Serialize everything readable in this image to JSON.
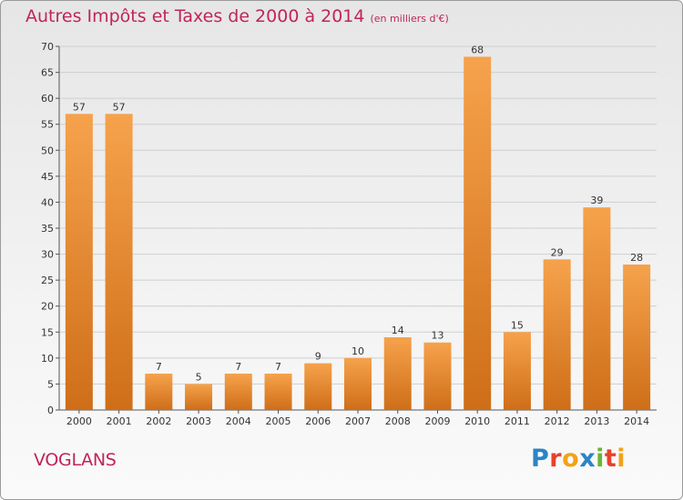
{
  "header": {
    "title": "Autres Impôts et Taxes de 2000 à 2014",
    "subtitle": "(en milliers d'€)"
  },
  "footer": {
    "city": "VOGLANS",
    "logo_letters": [
      "P",
      "r",
      "o",
      "x",
      "i",
      "t",
      "i"
    ],
    "logo_colors": [
      "#2b84c6",
      "#e8412c",
      "#f2a21a",
      "#2b84c6",
      "#6bb536",
      "#e8412c",
      "#f2a21a"
    ]
  },
  "colors": {
    "bar_light": "#f6a24c",
    "bar_dark": "#cf6e18",
    "title": "#c0245c",
    "grid": "#cfcfcf"
  },
  "chart_data": {
    "type": "bar",
    "title": "Autres Impôts et Taxes de 2000 à 2014",
    "subtitle": "(en milliers d'€)",
    "categories": [
      "2000",
      "2001",
      "2002",
      "2003",
      "2004",
      "2005",
      "2006",
      "2007",
      "2008",
      "2009",
      "2010",
      "2011",
      "2012",
      "2013",
      "2014"
    ],
    "values": [
      57,
      57,
      7,
      5,
      7,
      7,
      9,
      10,
      14,
      13,
      68,
      15,
      29,
      39,
      28
    ],
    "ylim": [
      0,
      70
    ],
    "yticks": [
      0,
      5,
      10,
      15,
      20,
      25,
      30,
      35,
      40,
      45,
      50,
      55,
      60,
      65,
      70
    ],
    "grid": true,
    "data_labels": true
  }
}
